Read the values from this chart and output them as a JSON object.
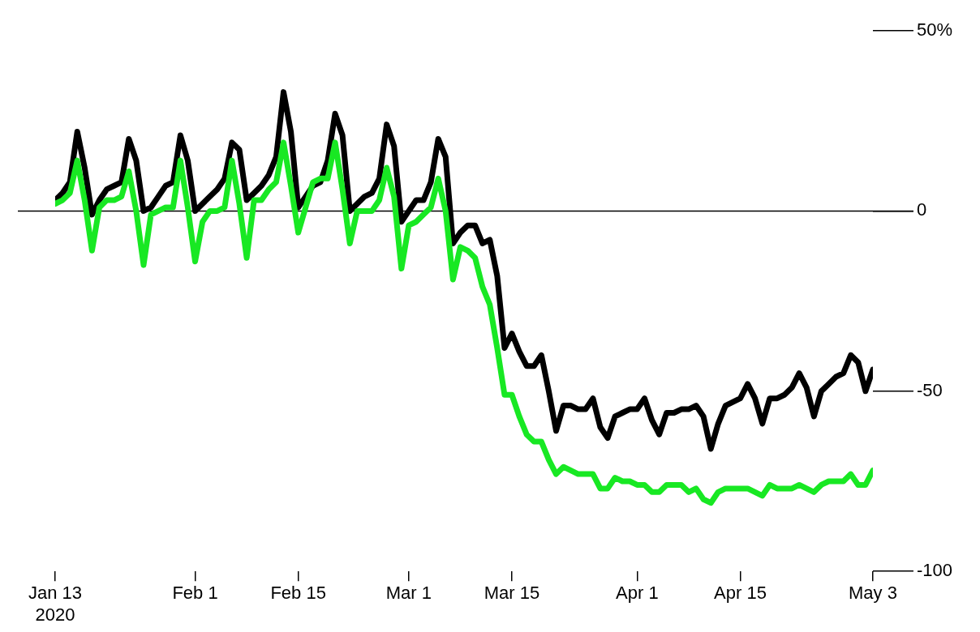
{
  "chart_data": {
    "type": "line",
    "x": [
      "2020-01-13",
      "2020-01-14",
      "2020-01-15",
      "2020-01-16",
      "2020-01-17",
      "2020-01-18",
      "2020-01-19",
      "2020-01-20",
      "2020-01-21",
      "2020-01-22",
      "2020-01-23",
      "2020-01-24",
      "2020-01-25",
      "2020-01-26",
      "2020-01-27",
      "2020-01-28",
      "2020-01-29",
      "2020-01-30",
      "2020-01-31",
      "2020-02-01",
      "2020-02-02",
      "2020-02-03",
      "2020-02-04",
      "2020-02-05",
      "2020-02-06",
      "2020-02-07",
      "2020-02-08",
      "2020-02-09",
      "2020-02-10",
      "2020-02-11",
      "2020-02-12",
      "2020-02-13",
      "2020-02-14",
      "2020-02-15",
      "2020-02-16",
      "2020-02-17",
      "2020-02-18",
      "2020-02-19",
      "2020-02-20",
      "2020-02-21",
      "2020-02-22",
      "2020-02-23",
      "2020-02-24",
      "2020-02-25",
      "2020-02-26",
      "2020-02-27",
      "2020-02-28",
      "2020-02-29",
      "2020-03-01",
      "2020-03-02",
      "2020-03-03",
      "2020-03-04",
      "2020-03-05",
      "2020-03-06",
      "2020-03-07",
      "2020-03-08",
      "2020-03-09",
      "2020-03-10",
      "2020-03-11",
      "2020-03-12",
      "2020-03-13",
      "2020-03-14",
      "2020-03-15",
      "2020-03-16",
      "2020-03-17",
      "2020-03-18",
      "2020-03-19",
      "2020-03-20",
      "2020-03-21",
      "2020-03-22",
      "2020-03-23",
      "2020-03-24",
      "2020-03-25",
      "2020-03-26",
      "2020-03-27",
      "2020-03-28",
      "2020-03-29",
      "2020-03-30",
      "2020-03-31",
      "2020-04-01",
      "2020-04-02",
      "2020-04-03",
      "2020-04-04",
      "2020-04-05",
      "2020-04-06",
      "2020-04-07",
      "2020-04-08",
      "2020-04-09",
      "2020-04-10",
      "2020-04-11",
      "2020-04-12",
      "2020-04-13",
      "2020-04-14",
      "2020-04-15",
      "2020-04-16",
      "2020-04-17",
      "2020-04-18",
      "2020-04-19",
      "2020-04-20",
      "2020-04-21",
      "2020-04-22",
      "2020-04-23",
      "2020-04-24",
      "2020-04-25",
      "2020-04-26",
      "2020-04-27",
      "2020-04-28",
      "2020-04-29",
      "2020-04-30",
      "2020-05-01",
      "2020-05-02",
      "2020-05-03"
    ],
    "series": [
      {
        "color": "#000000",
        "values": [
          3,
          5,
          8,
          22,
          12,
          -1,
          3,
          6,
          7,
          8,
          20,
          14,
          0,
          1,
          4,
          7,
          8,
          21,
          14,
          0,
          2,
          4,
          6,
          9,
          19,
          17,
          3,
          5,
          7,
          10,
          15,
          33,
          22,
          1,
          4,
          7,
          8,
          14,
          27,
          21,
          0,
          2,
          4,
          5,
          9,
          24,
          18,
          -3,
          0,
          3,
          3,
          8,
          20,
          15,
          -9,
          -6,
          -4,
          -4,
          -9,
          -8,
          -18,
          -38,
          -34,
          -39,
          -43,
          -43,
          -40,
          -50,
          -61,
          -54,
          -54,
          -55,
          -55,
          -52,
          -60,
          -63,
          -57,
          -56,
          -55,
          -55,
          -52,
          -58,
          -62,
          -56,
          -56,
          -55,
          -55,
          -54,
          -57,
          -66,
          -59,
          -54,
          -53,
          -52,
          -48,
          -52,
          -59,
          -52,
          -52,
          -51,
          -49,
          -45,
          -49,
          -57,
          -50,
          -48,
          -46,
          -45,
          -40,
          -42,
          -50,
          -44
        ]
      },
      {
        "color": "#18e823",
        "values": [
          2,
          3,
          5,
          14,
          3,
          -11,
          1,
          3,
          3,
          4,
          11,
          0,
          -15,
          -1,
          0,
          1,
          1,
          14,
          1,
          -14,
          -3,
          0,
          0,
          1,
          14,
          2,
          -13,
          3,
          3,
          6,
          8,
          19,
          7,
          -6,
          1,
          8,
          9,
          9,
          19,
          6,
          -9,
          0,
          0,
          0,
          3,
          12,
          4,
          -16,
          -4,
          -3,
          -1,
          1,
          9,
          0,
          -19,
          -10,
          -11,
          -13,
          -21,
          -26,
          -38,
          -51,
          -51,
          -57,
          -62,
          -64,
          -64,
          -69,
          -73,
          -71,
          -72,
          -73,
          -73,
          -73,
          -77,
          -77,
          -74,
          -75,
          -75,
          -76,
          -76,
          -78,
          -78,
          -76,
          -76,
          -76,
          -78,
          -77,
          -80,
          -81,
          -78,
          -77,
          -77,
          -77,
          -77,
          -78,
          -79,
          -76,
          -77,
          -77,
          -77,
          -76,
          -77,
          -78,
          -76,
          -75,
          -75,
          -75,
          -73,
          -76,
          -76,
          -72
        ]
      }
    ],
    "xlim": [
      "2020-01-13",
      "2020-05-03"
    ],
    "xticks": [
      {
        "value": "2020-01-13",
        "label": "Jan 13\n2020"
      },
      {
        "value": "2020-02-01",
        "label": "Feb 1"
      },
      {
        "value": "2020-02-15",
        "label": "Feb 15"
      },
      {
        "value": "2020-03-01",
        "label": "Mar 1"
      },
      {
        "value": "2020-03-15",
        "label": "Mar 15"
      },
      {
        "value": "2020-04-01",
        "label": "Apr 1"
      },
      {
        "value": "2020-04-15",
        "label": "Apr 15"
      },
      {
        "value": "2020-05-03",
        "label": "May 3"
      }
    ],
    "ylim": [
      -100,
      50
    ],
    "yticks": [
      -100,
      -50,
      0,
      {
        "value": 50,
        "label": "50%"
      }
    ],
    "ref_lines": [
      {
        "axis": "y",
        "value": 0,
        "color": "#000000"
      }
    ],
    "marker": "none"
  }
}
